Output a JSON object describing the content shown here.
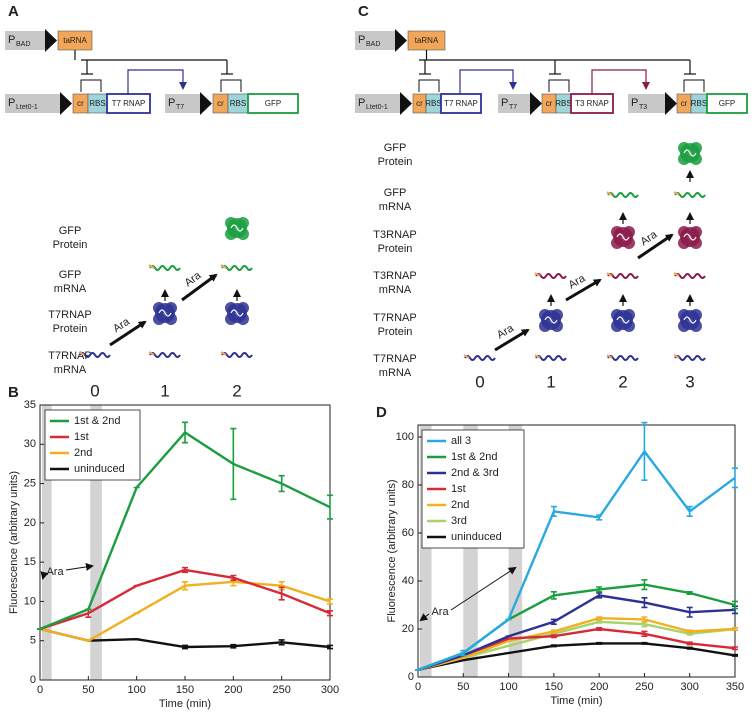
{
  "diagrams": [
    {
      "letter": "A",
      "promoters": [
        {
          "p": "P",
          "sub": "BAD"
        },
        {
          "p": "P",
          "sub": "Ltet0-1"
        },
        {
          "p": "P",
          "sub": "T7"
        }
      ],
      "genes": [
        "taRNA",
        "cr",
        "RBS",
        "T7 RNAP",
        "cr",
        "RBS",
        "GFP"
      ],
      "rows": [
        [
          "GFP",
          "Protein"
        ],
        [
          "GFP",
          "mRNA"
        ],
        [
          "T7RNAP",
          "Protein"
        ],
        [
          "T7RNAP",
          "mRNA"
        ]
      ],
      "stages": [
        "0",
        "1",
        "2"
      ],
      "ara": "Ara"
    },
    {
      "letter": "C",
      "promoters": [
        {
          "p": "P",
          "sub": "BAD"
        },
        {
          "p": "P",
          "sub": "Ltet0-1"
        },
        {
          "p": "P",
          "sub": "T7"
        },
        {
          "p": "P",
          "sub": "T3"
        }
      ],
      "genes": [
        "taRNA",
        "cr",
        "RBS",
        "T7 RNAP",
        "cr",
        "RBS",
        "T3 RNAP",
        "cr",
        "RBS",
        "GFP"
      ],
      "rows": [
        [
          "GFP",
          "Protein"
        ],
        [
          "GFP",
          "mRNA"
        ],
        [
          "T3RNAP",
          "Protein"
        ],
        [
          "T3RNAP",
          "mRNA"
        ],
        [
          "T7RNAP",
          "Protein"
        ],
        [
          "T7RNAP",
          "mRNA"
        ]
      ],
      "stages": [
        "0",
        "1",
        "2",
        "3"
      ],
      "ara": "Ara"
    }
  ],
  "chart_data": [
    {
      "type": "line",
      "panel": "B",
      "xlabel": "Time (min)",
      "ylabel": "Fluorescence (arbitrary units)",
      "x": [
        0,
        50,
        100,
        150,
        200,
        250,
        300
      ],
      "xlim": [
        0,
        300
      ],
      "xticks": [
        0,
        50,
        100,
        150,
        200,
        250,
        300
      ],
      "ylim": [
        0,
        35
      ],
      "yticks": [
        0,
        5,
        10,
        15,
        20,
        25,
        30,
        35
      ],
      "shaded": [
        [
          2,
          12
        ],
        [
          52,
          64
        ]
      ],
      "annotation": "Ara",
      "legend": "upper left",
      "series": [
        {
          "name": "1st & 2nd",
          "color": "#1a9e3f",
          "values": [
            6.5,
            9,
            24.5,
            31.5,
            27.5,
            25,
            22
          ],
          "errors": [
            0,
            0,
            0,
            1.3,
            4.5,
            1,
            1.5
          ]
        },
        {
          "name": "1st",
          "color": "#d62a36",
          "values": [
            6.5,
            8.5,
            12,
            14,
            13,
            11,
            8.5
          ],
          "errors": [
            0,
            0.5,
            0,
            0.3,
            0.3,
            0.8,
            0.3
          ]
        },
        {
          "name": "2nd",
          "color": "#f0b020",
          "values": [
            6.5,
            5,
            8.5,
            12,
            12.5,
            12,
            10
          ],
          "errors": [
            0,
            0,
            0,
            0.5,
            0.5,
            0.5,
            0.3
          ]
        },
        {
          "name": "uninduced",
          "color": "#111111",
          "values": [
            6.5,
            5,
            5.2,
            4.2,
            4.3,
            4.8,
            4.2
          ],
          "errors": [
            0,
            0,
            0,
            0.2,
            0.2,
            0.3,
            0.2
          ]
        }
      ]
    },
    {
      "type": "line",
      "panel": "D",
      "xlabel": "Time (min)",
      "ylabel": "Fluorescence (arbitrary units)",
      "x": [
        0,
        50,
        100,
        150,
        200,
        250,
        300,
        350
      ],
      "xlim": [
        0,
        350
      ],
      "xticks": [
        0,
        50,
        100,
        150,
        200,
        250,
        300,
        350
      ],
      "ylim": [
        0,
        105
      ],
      "yticks": [
        0,
        20,
        40,
        60,
        80,
        100
      ],
      "shaded": [
        [
          2,
          15
        ],
        [
          50,
          66
        ],
        [
          100,
          115
        ]
      ],
      "annotation": "Ara",
      "legend": "upper left",
      "series": [
        {
          "name": "all 3",
          "color": "#29a9e1",
          "values": [
            3,
            10,
            24,
            69,
            66.5,
            94,
            69,
            83
          ],
          "errors": [
            0,
            1,
            0,
            2,
            1,
            12,
            2,
            4
          ]
        },
        {
          "name": "1st & 2nd",
          "color": "#1a9e3f",
          "values": [
            3,
            10,
            24,
            34,
            36.5,
            38.5,
            35,
            30
          ],
          "errors": [
            0,
            0,
            0,
            1.5,
            1,
            2,
            0.5,
            1.5
          ]
        },
        {
          "name": "2nd & 3rd",
          "color": "#2e3192",
          "values": [
            3,
            9,
            17,
            23,
            34,
            31,
            27,
            28
          ],
          "errors": [
            0,
            0,
            0,
            1,
            1,
            2,
            2,
            1.5
          ]
        },
        {
          "name": "1st",
          "color": "#d62a36",
          "values": [
            3,
            9,
            16,
            17,
            20,
            18,
            14,
            12
          ],
          "errors": [
            0,
            0,
            0,
            0.5,
            0.5,
            1,
            0.5,
            0.5
          ]
        },
        {
          "name": "2nd",
          "color": "#f0b020",
          "values": [
            3,
            8,
            15,
            19,
            24.5,
            24,
            19,
            20
          ],
          "errors": [
            0,
            0,
            0,
            0.5,
            0.5,
            1,
            0.5,
            0.5
          ]
        },
        {
          "name": "3rd",
          "color": "#a6d36b",
          "values": [
            3,
            8,
            13,
            18,
            23,
            22,
            18,
            20
          ],
          "errors": [
            0,
            0,
            0,
            0.5,
            0.5,
            1,
            0.5,
            0.5
          ]
        },
        {
          "name": "uninduced",
          "color": "#111111",
          "values": [
            3,
            7,
            10,
            13,
            14,
            14,
            12,
            9
          ],
          "errors": [
            0,
            0,
            0,
            0.3,
            0.3,
            0.3,
            0.3,
            0.3
          ]
        }
      ]
    }
  ]
}
